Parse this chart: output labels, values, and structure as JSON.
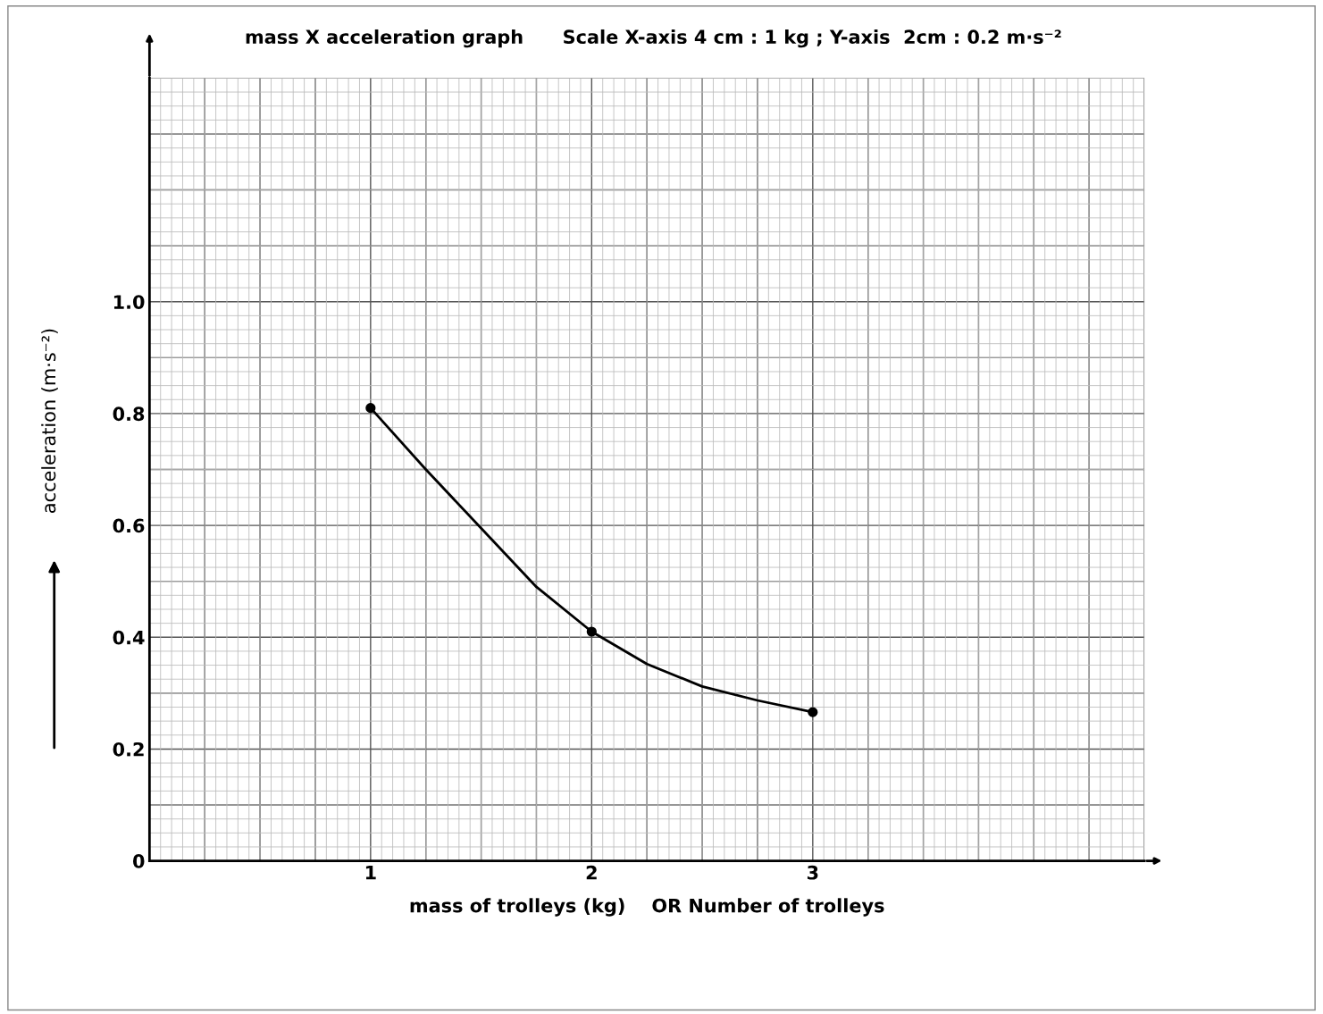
{
  "chart_data": {
    "type": "line",
    "title": "mass X acceleration graph      Scale X-axis 4 cm : 1 kg ; Y-axis  2cm : 0.2 m·s⁻²",
    "xlabel": "mass of trolleys (kg)    OR Number of trolleys",
    "ylabel": "acceleration (m·s⁻²)",
    "series": [
      {
        "color": "#000000",
        "x": [
          1,
          1.25,
          1.5,
          1.75,
          2,
          2.25,
          2.5,
          2.75,
          3
        ],
        "values": [
          0.81,
          0.7,
          0.595,
          0.49,
          0.41,
          0.352,
          0.312,
          0.287,
          0.266
        ],
        "marker": "none"
      },
      {
        "type": "scatter",
        "color": "#000000",
        "x": [
          1,
          2,
          3
        ],
        "values": [
          0.81,
          0.41,
          0.266
        ],
        "marker": "circle"
      }
    ],
    "xlim": [
      0,
      4.5
    ],
    "xticks": [
      1,
      2,
      3
    ],
    "ylim": [
      0,
      1.4
    ],
    "yticks": [
      {
        "value": 0,
        "label": "0"
      },
      0.2,
      0.4,
      0.6,
      0.8,
      {
        "value": 1.0,
        "label": "1.0"
      }
    ],
    "grid": true
  }
}
